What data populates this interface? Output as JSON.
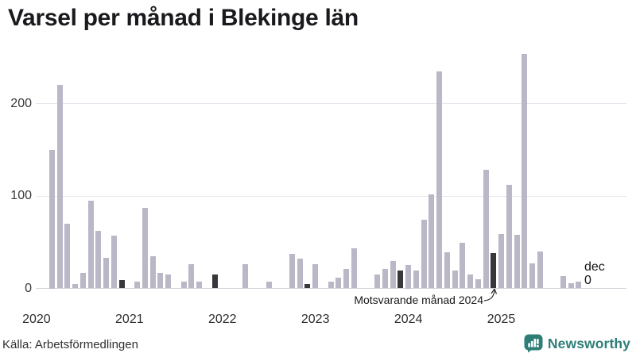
{
  "title": "Varsel per månad i Blekinge län",
  "source": "Källa: Arbetsförmedlingen",
  "brand": {
    "name": "Newsworthy",
    "color": "#2e7e77"
  },
  "annotation": {
    "text": "Motsvarande månad 2024",
    "target": "december 2024"
  },
  "latest_label": {
    "month": "dec",
    "value": "0"
  },
  "colors": {
    "bar": "#bab7c6",
    "highlight_bar": "#38383c",
    "grid": "#e6e6ee",
    "axis_line": "#d2d2da",
    "text": "#1a1a1e",
    "brand_teal": "#2e7e77"
  },
  "chart_data": {
    "type": "bar",
    "title": "Varsel per månad i Blekinge län",
    "xlabel": "",
    "ylabel": "",
    "ylim": [
      0,
      260
    ],
    "yticks": [
      0,
      100,
      200
    ],
    "grid": true,
    "legend": false,
    "x_unit": "month",
    "year_labels": [
      "2020",
      "2021",
      "2022",
      "2023",
      "2024",
      "2025"
    ],
    "highlight_month_index": 11,
    "highlight_note": "December varje år är mörkmarkerad; pilen pekar på december 2024",
    "years": [
      {
        "year": "2020",
        "values": [
          0,
          0,
          150,
          220,
          70,
          5,
          17,
          95,
          62,
          33,
          57,
          9
        ]
      },
      {
        "year": "2021",
        "values": [
          0,
          7,
          87,
          35,
          17,
          15,
          0,
          7,
          26,
          7,
          0,
          15
        ]
      },
      {
        "year": "2022",
        "values": [
          0,
          0,
          0,
          26,
          0,
          0,
          7,
          0,
          0,
          37,
          32,
          5
        ]
      },
      {
        "year": "2023",
        "values": [
          26,
          0,
          7,
          12,
          21,
          43,
          0,
          0,
          15,
          21,
          30,
          19
        ]
      },
      {
        "year": "2024",
        "values": [
          25,
          19,
          74,
          102,
          235,
          39,
          19,
          49,
          15,
          10,
          128,
          38
        ]
      },
      {
        "year": "2025",
        "values": [
          59,
          112,
          58,
          254,
          27,
          40,
          0,
          0,
          13,
          6,
          7,
          0
        ]
      }
    ]
  }
}
